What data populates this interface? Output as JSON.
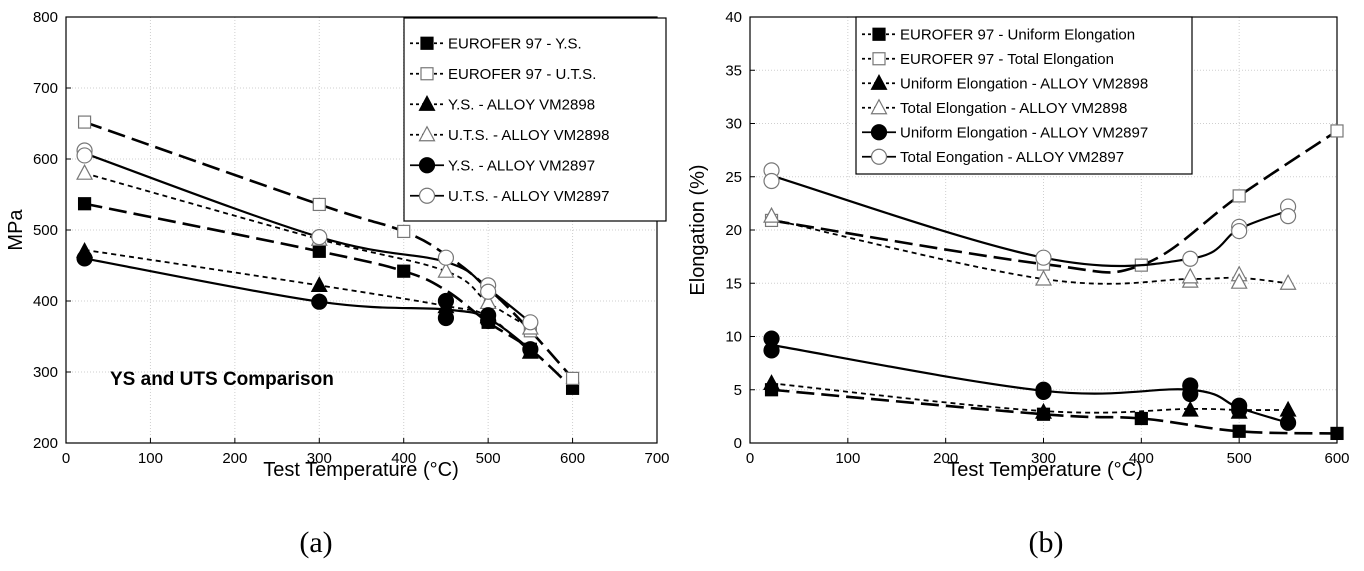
{
  "chart_data": [
    {
      "type": "line",
      "panel_label": "(a)",
      "xlabel": "Test Temperature (°C)",
      "ylabel": "MPa",
      "xlim": [
        0,
        700
      ],
      "ylim": [
        200,
        800
      ],
      "xticks": [
        0,
        100,
        200,
        300,
        400,
        500,
        600,
        700
      ],
      "yticks": [
        200,
        300,
        400,
        500,
        600,
        700,
        800
      ],
      "grid": true,
      "legend_position": "top-right",
      "annotation": "YS and UTS Comparison",
      "series": [
        {
          "name": "EUROFER 97 - Y.S.",
          "marker": "square-filled",
          "line": "long-dash",
          "points": [
            [
              22,
              537
            ],
            [
              300,
              470
            ],
            [
              400,
              442
            ],
            [
              500,
              370
            ],
            [
              550,
              332
            ],
            [
              600,
              277
            ]
          ],
          "curve": [
            [
              22,
              537
            ],
            [
              300,
              470
            ],
            [
              400,
              442
            ],
            [
              450,
              415
            ],
            [
              500,
              370
            ],
            [
              550,
              332
            ],
            [
              600,
              277
            ]
          ]
        },
        {
          "name": "EUROFER 97 - U.T.S.",
          "marker": "square-open",
          "line": "long-dash",
          "points": [
            [
              22,
              652
            ],
            [
              300,
              536
            ],
            [
              400,
              498
            ],
            [
              500,
              418
            ],
            [
              550,
              358
            ],
            [
              600,
              291
            ]
          ],
          "curve": [
            [
              22,
              652
            ],
            [
              300,
              536
            ],
            [
              400,
              498
            ],
            [
              450,
              465
            ],
            [
              500,
              418
            ],
            [
              550,
              358
            ],
            [
              600,
              291
            ]
          ]
        },
        {
          "name": "Y.S. - ALLOY VM2898",
          "marker": "triangle-filled",
          "line": "short-dash",
          "points": [
            [
              22,
              470
            ],
            [
              300,
              422
            ],
            [
              450,
              392
            ],
            [
              500,
              378
            ],
            [
              550,
              328
            ]
          ],
          "curve": [
            [
              22,
              472
            ],
            [
              300,
              422
            ],
            [
              450,
              393
            ],
            [
              500,
              378
            ],
            [
              550,
              328
            ]
          ]
        },
        {
          "name": "U.T.S. - ALLOY VM2898",
          "marker": "triangle-open",
          "line": "short-dash",
          "points": [
            [
              22,
              580
            ],
            [
              300,
              487
            ],
            [
              450,
              442
            ],
            [
              500,
              398
            ],
            [
              550,
              362
            ]
          ],
          "curve": [
            [
              22,
              580
            ],
            [
              300,
              487
            ],
            [
              450,
              442
            ],
            [
              500,
              398
            ],
            [
              550,
              362
            ]
          ]
        },
        {
          "name": "Y.S. - ALLOY VM2897",
          "marker": "circle-filled",
          "line": "solid",
          "points": [
            [
              22,
              460
            ],
            [
              300,
              399
            ],
            [
              450,
              400
            ],
            [
              450,
              376
            ],
            [
              500,
              372
            ],
            [
              500,
              380
            ],
            [
              550,
              332
            ]
          ],
          "curve": [
            [
              22,
              460
            ],
            [
              300,
              399
            ],
            [
              450,
              388
            ],
            [
              500,
              375
            ],
            [
              550,
              332
            ]
          ]
        },
        {
          "name": "U.T.S. - ALLOY VM2897",
          "marker": "circle-open",
          "line": "solid",
          "points": [
            [
              22,
              612
            ],
            [
              22,
              605
            ],
            [
              300,
              490
            ],
            [
              450,
              461
            ],
            [
              500,
              422
            ],
            [
              500,
              413
            ],
            [
              550,
              370
            ]
          ],
          "curve": [
            [
              22,
              608
            ],
            [
              300,
              490
            ],
            [
              450,
              455
            ],
            [
              500,
              417
            ],
            [
              550,
              370
            ]
          ]
        }
      ]
    },
    {
      "type": "line",
      "panel_label": "(b)",
      "xlabel": "Test Temperature (°C)",
      "ylabel": "Elongation (%)",
      "xlim": [
        0,
        600
      ],
      "ylim": [
        0,
        40
      ],
      "xticks": [
        0,
        100,
        200,
        300,
        400,
        500,
        600
      ],
      "yticks": [
        0,
        5,
        10,
        15,
        20,
        25,
        30,
        35,
        40
      ],
      "grid": true,
      "legend_position": "top-left",
      "series": [
        {
          "name": "EUROFER 97 - Uniform Elongation",
          "marker": "square-filled",
          "line": "long-dash",
          "points": [
            [
              22,
              5.0
            ],
            [
              300,
              2.7
            ],
            [
              400,
              2.3
            ],
            [
              500,
              1.1
            ],
            [
              600,
              0.9
            ]
          ],
          "curve": [
            [
              22,
              5.0
            ],
            [
              300,
              2.7
            ],
            [
              400,
              2.3
            ],
            [
              500,
              1.1
            ],
            [
              600,
              0.9
            ]
          ]
        },
        {
          "name": "EUROFER 97 - Total Elongation",
          "marker": "square-open",
          "line": "long-dash",
          "points": [
            [
              22,
              20.9
            ],
            [
              300,
              16.8
            ],
            [
              400,
              16.7
            ],
            [
              500,
              23.2
            ],
            [
              600,
              29.3
            ]
          ],
          "curve": [
            [
              22,
              20.9
            ],
            [
              300,
              16.8
            ],
            [
              400,
              16.7
            ],
            [
              500,
              23.2
            ],
            [
              600,
              29.3
            ]
          ]
        },
        {
          "name": "Uniform Elongation - ALLOY VM2898",
          "marker": "triangle-filled",
          "line": "short-dash",
          "points": [
            [
              22,
              5.6
            ],
            [
              300,
              2.9
            ],
            [
              450,
              3.1
            ],
            [
              500,
              2.9
            ],
            [
              550,
              3.1
            ]
          ],
          "curve": [
            [
              22,
              5.6
            ],
            [
              300,
              3.0
            ],
            [
              450,
              3.2
            ],
            [
              500,
              3.1
            ],
            [
              550,
              3.1
            ]
          ]
        },
        {
          "name": "Total Elongation - ALLOY VM2898",
          "marker": "triangle-open",
          "line": "short-dash",
          "points": [
            [
              22,
              21.3
            ],
            [
              300,
              15.4
            ],
            [
              450,
              15.2
            ],
            [
              450,
              15.6
            ],
            [
              500,
              15.8
            ],
            [
              500,
              15.1
            ],
            [
              550,
              15.0
            ]
          ],
          "curve": [
            [
              22,
              21.0
            ],
            [
              300,
              15.4
            ],
            [
              450,
              15.4
            ],
            [
              500,
              15.5
            ],
            [
              550,
              15.0
            ]
          ]
        },
        {
          "name": "Uniform Elongation - ALLOY VM2897",
          "marker": "circle-filled",
          "line": "solid",
          "points": [
            [
              22,
              9.8
            ],
            [
              22,
              8.7
            ],
            [
              300,
              5.0
            ],
            [
              300,
              4.8
            ],
            [
              450,
              5.4
            ],
            [
              450,
              4.6
            ],
            [
              500,
              3.5
            ],
            [
              500,
              3.1
            ],
            [
              550,
              1.9
            ]
          ],
          "curve": [
            [
              22,
              9.2
            ],
            [
              300,
              4.9
            ],
            [
              450,
              5.0
            ],
            [
              500,
              3.3
            ],
            [
              550,
              1.9
            ]
          ]
        },
        {
          "name": "Total Eongation - ALLOY VM2897",
          "marker": "circle-open",
          "line": "solid",
          "points": [
            [
              22,
              25.6
            ],
            [
              22,
              24.6
            ],
            [
              300,
              17.4
            ],
            [
              450,
              17.3
            ],
            [
              500,
              20.3
            ],
            [
              500,
              19.9
            ],
            [
              550,
              22.2
            ],
            [
              550,
              21.3
            ]
          ],
          "curve": [
            [
              22,
              25.1
            ],
            [
              300,
              17.4
            ],
            [
              450,
              17.3
            ],
            [
              500,
              20.1
            ],
            [
              550,
              21.8
            ]
          ]
        }
      ]
    }
  ]
}
